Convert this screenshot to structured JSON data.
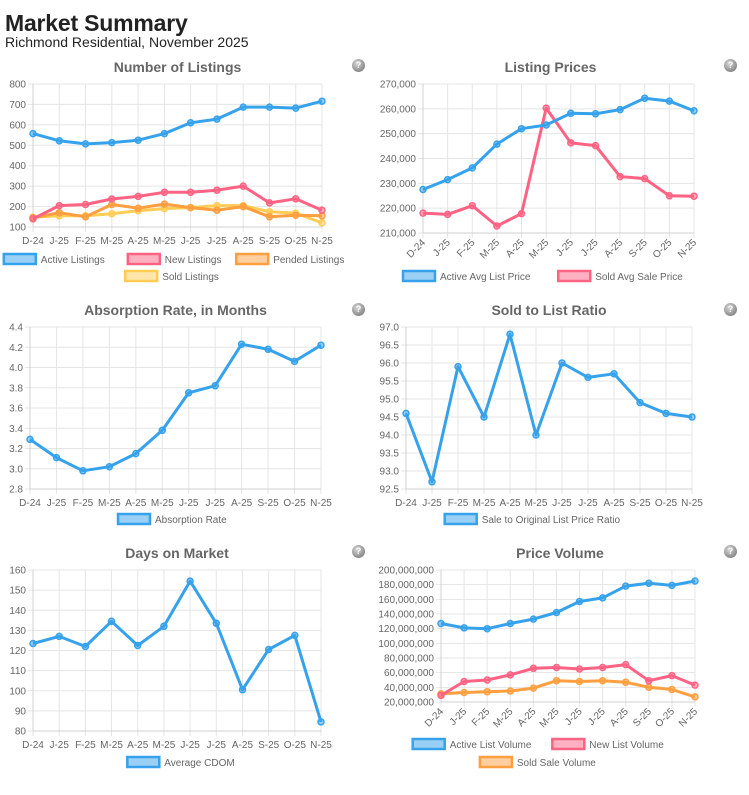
{
  "header": {
    "title": "Market Summary",
    "subtitle": "Richmond Residential, November 2025"
  },
  "help_icon_label": "?",
  "colors": {
    "blue": "#36a2eb",
    "pink": "#ff6384",
    "orange": "#ff9f40",
    "yellow": "#ffcd56",
    "grid": "#e5e5e5",
    "text": "#666666"
  },
  "chart_data": [
    {
      "id": "listings",
      "type": "line",
      "title": "Number of Listings",
      "categories": [
        "D-24",
        "J-25",
        "F-25",
        "M-25",
        "A-25",
        "M-25",
        "J-25",
        "J-25",
        "A-25",
        "S-25",
        "O-25",
        "N-25"
      ],
      "ylim": [
        100,
        800
      ],
      "yticks": [
        100,
        200,
        300,
        400,
        500,
        600,
        700,
        800
      ],
      "ytick_labels": [
        "100",
        "200",
        "300",
        "400",
        "500",
        "600",
        "700",
        "800"
      ],
      "xlabel_rotated": false,
      "grid": true,
      "legend": "bottom",
      "series": [
        {
          "name": "Active Listings",
          "color": "blue",
          "values": [
            557,
            522,
            507,
            513,
            525,
            557,
            610,
            628,
            687,
            687,
            682,
            716
          ]
        },
        {
          "name": "New Listings",
          "color": "pink",
          "values": [
            140,
            205,
            210,
            237,
            250,
            270,
            270,
            280,
            300,
            218,
            238,
            182
          ]
        },
        {
          "name": "Pended Listings",
          "color": "orange",
          "values": [
            145,
            170,
            150,
            210,
            192,
            212,
            195,
            182,
            200,
            150,
            158,
            155
          ]
        },
        {
          "name": "Sold Listings",
          "color": "yellow",
          "values": [
            148,
            155,
            155,
            165,
            180,
            190,
            195,
            205,
            205,
            175,
            168,
            120
          ]
        }
      ]
    },
    {
      "id": "prices",
      "type": "line",
      "title": "Listing Prices",
      "categories": [
        "D-24",
        "J-25",
        "F-25",
        "M-25",
        "A-25",
        "M-25",
        "J-25",
        "J-25",
        "A-25",
        "S-25",
        "O-25",
        "N-25"
      ],
      "ylim": [
        210000,
        270000
      ],
      "yticks": [
        210000,
        220000,
        230000,
        240000,
        250000,
        260000,
        270000
      ],
      "ytick_labels": [
        "210,000",
        "220,000",
        "230,000",
        "240,000",
        "250,000",
        "260,000",
        "270,000"
      ],
      "xlabel_rotated": true,
      "grid": true,
      "legend": "bottom",
      "series": [
        {
          "name": "Active Avg List Price",
          "color": "blue",
          "values": [
            227500,
            231500,
            236200,
            245800,
            252000,
            253500,
            258200,
            258000,
            259700,
            264300,
            263100,
            259200
          ]
        },
        {
          "name": "Sold Avg Sale Price",
          "color": "pink",
          "values": [
            218000,
            217500,
            221000,
            212800,
            217800,
            260300,
            246300,
            245200,
            232700,
            231900,
            225000,
            224800
          ]
        }
      ]
    },
    {
      "id": "absorption",
      "type": "line",
      "title": "Absorption Rate, in Months",
      "categories": [
        "D-24",
        "J-25",
        "F-25",
        "M-25",
        "A-25",
        "M-25",
        "J-25",
        "J-25",
        "A-25",
        "S-25",
        "O-25",
        "N-25"
      ],
      "ylim": [
        2.8,
        4.4
      ],
      "yticks": [
        2.8,
        3.0,
        3.2,
        3.4,
        3.6,
        3.8,
        4.0,
        4.2,
        4.4
      ],
      "ytick_labels": [
        "2.8",
        "3.0",
        "3.2",
        "3.4",
        "3.6",
        "3.8",
        "4.0",
        "4.2",
        "4.4"
      ],
      "xlabel_rotated": false,
      "grid": true,
      "legend": "bottom",
      "series": [
        {
          "name": "Absorption Rate",
          "color": "blue",
          "values": [
            3.29,
            3.11,
            2.98,
            3.02,
            3.15,
            3.38,
            3.75,
            3.82,
            4.23,
            4.18,
            4.06,
            4.22
          ]
        }
      ]
    },
    {
      "id": "ratio",
      "type": "line",
      "title": "Sold to List Ratio",
      "categories": [
        "D-24",
        "J-25",
        "F-25",
        "M-25",
        "A-25",
        "M-25",
        "J-25",
        "J-25",
        "A-25",
        "S-25",
        "O-25",
        "N-25"
      ],
      "ylim": [
        92.5,
        97.0
      ],
      "yticks": [
        92.5,
        93.0,
        93.5,
        94.0,
        94.5,
        95.0,
        95.5,
        96.0,
        96.5,
        97.0
      ],
      "ytick_labels": [
        "92.5",
        "93.0",
        "93.5",
        "94.0",
        "94.5",
        "95.0",
        "95.5",
        "96.0",
        "96.5",
        "97.0"
      ],
      "xlabel_rotated": false,
      "grid": true,
      "legend": "bottom",
      "series": [
        {
          "name": "Sale to Original List Price Ratio",
          "color": "blue",
          "values": [
            94.6,
            92.7,
            95.9,
            94.5,
            96.8,
            94.0,
            96.0,
            95.6,
            95.7,
            94.9,
            94.6,
            94.5
          ]
        }
      ]
    },
    {
      "id": "dom",
      "type": "line",
      "title": "Days on Market",
      "categories": [
        "D-24",
        "J-25",
        "F-25",
        "M-25",
        "A-25",
        "M-25",
        "J-25",
        "J-25",
        "A-25",
        "S-25",
        "O-25",
        "N-25"
      ],
      "ylim": [
        80,
        160
      ],
      "yticks": [
        80,
        90,
        100,
        110,
        120,
        130,
        140,
        150,
        160
      ],
      "ytick_labels": [
        "80",
        "90",
        "100",
        "110",
        "120",
        "130",
        "140",
        "150",
        "160"
      ],
      "xlabel_rotated": false,
      "grid": true,
      "legend": "bottom",
      "series": [
        {
          "name": "Average CDOM",
          "color": "blue",
          "values": [
            123.5,
            127,
            122,
            134.5,
            122.5,
            132,
            154.5,
            133.5,
            100.5,
            120.5,
            127.5,
            84.5
          ]
        }
      ]
    },
    {
      "id": "volume",
      "type": "line",
      "title": "Price Volume",
      "categories": [
        "D-24",
        "J-25",
        "F-25",
        "M-25",
        "A-25",
        "M-25",
        "J-25",
        "J-25",
        "A-25",
        "S-25",
        "O-25",
        "N-25"
      ],
      "ylim": [
        20000000,
        200000000
      ],
      "yticks": [
        20000000,
        40000000,
        60000000,
        80000000,
        100000000,
        120000000,
        140000000,
        160000000,
        180000000,
        200000000
      ],
      "ytick_labels": [
        "20,000,000",
        "40,000,000",
        "60,000,000",
        "80,000,000",
        "100,000,000",
        "120,000,000",
        "140,000,000",
        "160,000,000",
        "180,000,000",
        "200,000,000"
      ],
      "xlabel_rotated": true,
      "grid": true,
      "legend": "bottom",
      "series": [
        {
          "name": "Active List Volume",
          "color": "blue",
          "values": [
            127000000,
            121000000,
            120000000,
            127000000,
            133000000,
            142000000,
            157000000,
            162000000,
            178000000,
            182000000,
            179000000,
            185000000
          ]
        },
        {
          "name": "New List Volume",
          "color": "pink",
          "values": [
            29000000,
            48000000,
            50000000,
            57000000,
            66000000,
            67000000,
            65000000,
            67000000,
            71000000,
            49000000,
            56000000,
            43000000
          ]
        },
        {
          "name": "Sold Sale Volume",
          "color": "orange",
          "values": [
            31000000,
            33000000,
            34000000,
            35000000,
            39000000,
            49000000,
            48000000,
            49000000,
            47000000,
            40000000,
            37000000,
            27000000
          ]
        }
      ]
    }
  ]
}
